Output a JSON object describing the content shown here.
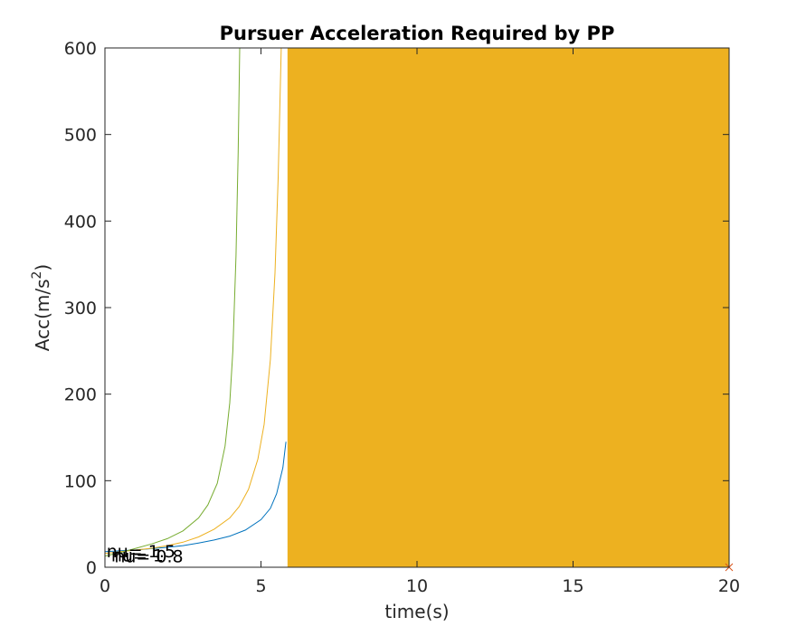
{
  "chart_data": {
    "type": "line",
    "title": "Pursuer Acceleration Required by PP",
    "xlabel": "time(s)",
    "ylabel_base": "Acc(m/s",
    "ylabel_sup": "2",
    "ylabel_close": ")",
    "xlim": [
      0,
      20
    ],
    "ylim": [
      0,
      600
    ],
    "xticks": [
      0,
      5,
      10,
      15,
      20
    ],
    "yticks": [
      0,
      100,
      200,
      300,
      400,
      500,
      600
    ],
    "grid": false,
    "series": [
      {
        "color": "#0072BD",
        "points": [
          [
            0,
            18
          ],
          [
            0.5,
            19
          ],
          [
            1,
            20
          ],
          [
            1.5,
            21.5
          ],
          [
            2,
            23
          ],
          [
            2.5,
            25
          ],
          [
            3,
            28
          ],
          [
            3.5,
            31.5
          ],
          [
            4,
            36
          ],
          [
            4.5,
            43
          ],
          [
            5,
            55
          ],
          [
            5.3,
            68
          ],
          [
            5.5,
            85
          ],
          [
            5.7,
            115
          ],
          [
            5.8,
            145
          ]
        ]
      },
      {
        "color": "#EDB120",
        "points": [
          [
            0,
            16
          ],
          [
            0.5,
            18
          ],
          [
            1,
            20
          ],
          [
            1.5,
            22
          ],
          [
            2,
            25
          ],
          [
            2.5,
            29
          ],
          [
            3,
            35
          ],
          [
            3.5,
            44
          ],
          [
            4,
            57
          ],
          [
            4.3,
            70
          ],
          [
            4.6,
            90
          ],
          [
            4.9,
            125
          ],
          [
            5.1,
            165
          ],
          [
            5.3,
            240
          ],
          [
            5.45,
            340
          ],
          [
            5.55,
            450
          ],
          [
            5.65,
            600
          ]
        ]
      },
      {
        "color": "#77AC30",
        "points": [
          [
            0,
            13
          ],
          [
            0.5,
            17
          ],
          [
            1,
            22
          ],
          [
            1.5,
            27
          ],
          [
            2,
            33
          ],
          [
            2.5,
            42
          ],
          [
            3,
            57
          ],
          [
            3.3,
            72
          ],
          [
            3.6,
            97
          ],
          [
            3.85,
            140
          ],
          [
            4.0,
            190
          ],
          [
            4.1,
            250
          ],
          [
            4.2,
            360
          ],
          [
            4.27,
            480
          ],
          [
            4.32,
            600
          ]
        ]
      }
    ],
    "filled_region": {
      "x0": 5.85,
      "x1": 20,
      "y0": 0,
      "y1": 600,
      "color": "#EDB120"
    },
    "end_marker": {
      "x": 20,
      "y": 0,
      "symbol": "x",
      "color": "#D95319"
    },
    "annotations": [
      {
        "text": "nu= 1.5",
        "x": 0.05,
        "y": 18
      },
      {
        "text": "nu= 1",
        "x": 0.2,
        "y": 13
      },
      {
        "text": "nu= 0.8",
        "x": 0.3,
        "y": 12
      }
    ]
  }
}
